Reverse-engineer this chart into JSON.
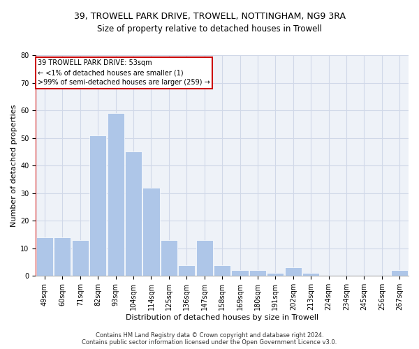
{
  "title1": "39, TROWELL PARK DRIVE, TROWELL, NOTTINGHAM, NG9 3RA",
  "title2": "Size of property relative to detached houses in Trowell",
  "xlabel": "Distribution of detached houses by size in Trowell",
  "ylabel": "Number of detached properties",
  "categories": [
    "49sqm",
    "60sqm",
    "71sqm",
    "82sqm",
    "93sqm",
    "104sqm",
    "114sqm",
    "125sqm",
    "136sqm",
    "147sqm",
    "158sqm",
    "169sqm",
    "180sqm",
    "191sqm",
    "202sqm",
    "213sqm",
    "224sqm",
    "234sqm",
    "245sqm",
    "256sqm",
    "267sqm"
  ],
  "values": [
    14,
    14,
    13,
    51,
    59,
    45,
    32,
    13,
    4,
    13,
    4,
    2,
    2,
    1,
    3,
    1,
    0,
    0,
    0,
    0,
    2
  ],
  "bar_color": "#aec6e8",
  "annotation_lines": [
    "39 TROWELL PARK DRIVE: 53sqm",
    "← <1% of detached houses are smaller (1)",
    ">99% of semi-detached houses are larger (259) →"
  ],
  "annotation_box_color": "#ffffff",
  "annotation_box_edgecolor": "#cc0000",
  "vertical_line_color": "#cc0000",
  "ylim": [
    0,
    80
  ],
  "yticks": [
    0,
    10,
    20,
    30,
    40,
    50,
    60,
    70,
    80
  ],
  "footer1": "Contains HM Land Registry data © Crown copyright and database right 2024.",
  "footer2": "Contains public sector information licensed under the Open Government Licence v3.0.",
  "grid_color": "#d0d8e8",
  "background_color": "#eef2f8",
  "title1_fontsize": 9,
  "title2_fontsize": 8.5,
  "ylabel_fontsize": 8,
  "xlabel_fontsize": 8,
  "tick_fontsize": 7,
  "annotation_fontsize": 7,
  "footer_fontsize": 6
}
